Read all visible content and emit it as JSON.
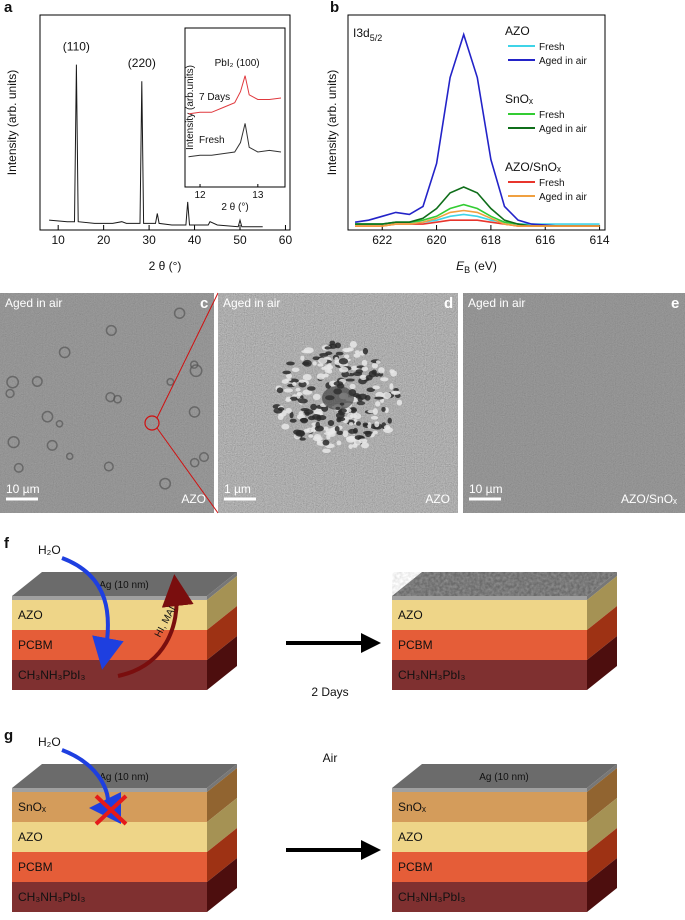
{
  "chart_data": [
    {
      "panel": "a",
      "type": "line",
      "xlabel": "2 θ (°)",
      "ylabel": "Intensity (arb. units)",
      "xlim": [
        6,
        61
      ],
      "xticks": [
        10,
        20,
        30,
        40,
        50,
        60
      ],
      "ylim": [
        0,
        1.3
      ],
      "x": [
        8,
        12,
        13.6,
        14,
        14.4,
        18,
        22,
        24,
        25,
        26,
        28,
        28.4,
        28.8,
        31.4,
        31.8,
        32.2,
        35,
        38.1,
        38.5,
        38.9,
        43,
        43.4,
        45,
        49.6,
        50,
        50.4,
        55
      ],
      "series": [
        {
          "color": "#1a1a1a",
          "values": [
            0.06,
            0.05,
            0.05,
            1.0,
            0.05,
            0.04,
            0.04,
            0.05,
            0.04,
            0.04,
            0.04,
            0.9,
            0.04,
            0.04,
            0.1,
            0.04,
            0.03,
            0.03,
            0.17,
            0.03,
            0.03,
            0.05,
            0.03,
            0.02,
            0.06,
            0.02,
            0.02
          ]
        }
      ],
      "peak_labels": [
        "(110)",
        "(220)"
      ]
    },
    {
      "type": "line",
      "xlabel": "2 θ (°)",
      "ylabel": "Intensity (arb.units)",
      "annotation": "PbI₂ (100)",
      "xlim": [
        11.74,
        13.47
      ],
      "xticks": [
        12,
        13
      ],
      "ylim": [
        0,
        1
      ],
      "x": [
        11.8,
        12.0,
        12.2,
        12.4,
        12.6,
        12.7,
        12.78,
        12.85,
        13.0,
        13.2,
        13.4
      ],
      "series": [
        {
          "name": "7 Days",
          "color": "#e0393e",
          "values": [
            0.46,
            0.47,
            0.47,
            0.5,
            0.53,
            0.6,
            0.7,
            0.58,
            0.55,
            0.55,
            0.56
          ]
        },
        {
          "name": "Fresh",
          "color": "#333333",
          "values": [
            0.19,
            0.2,
            0.2,
            0.21,
            0.22,
            0.28,
            0.4,
            0.25,
            0.22,
            0.23,
            0.22
          ]
        }
      ]
    },
    {
      "panel": "b",
      "type": "line",
      "label": {
        "main": "I3d",
        "subscript": "5/2"
      },
      "xlabel": {
        "symbol": "E",
        "subscript": "B",
        "unit": "(eV)"
      },
      "ylabel": "Intensity (arb. units)",
      "xlim": [
        623.26,
        613.8
      ],
      "xticks": [
        622,
        620,
        618,
        616,
        614
      ],
      "ylim": [
        0,
        1.1
      ],
      "x": [
        623,
        622.5,
        622,
        621.5,
        621,
        620.5,
        620,
        619.5,
        619,
        618.5,
        618,
        617.5,
        617,
        616.5,
        616,
        615.5,
        615,
        614.5,
        614
      ],
      "legend_groups": [
        "AZO",
        "SnOₓ",
        "AZO/SnOₓ"
      ],
      "series": [
        {
          "name": "Fresh",
          "group": 0,
          "color": "#3fd4e8",
          "values": [
            0.03,
            0.03,
            0.03,
            0.04,
            0.04,
            0.04,
            0.05,
            0.07,
            0.08,
            0.07,
            0.05,
            0.04,
            0.03,
            0.03,
            0.03,
            0.03,
            0.03,
            0.03,
            0.03
          ]
        },
        {
          "name": "Aged in air",
          "group": 0,
          "color": "#2323c8",
          "values": [
            0.04,
            0.05,
            0.07,
            0.09,
            0.08,
            0.12,
            0.34,
            0.78,
            1.0,
            0.78,
            0.36,
            0.12,
            0.05,
            0.03,
            0.025,
            0.02,
            0.02,
            0.02,
            0.02
          ]
        },
        {
          "name": "Fresh",
          "group": 1,
          "color": "#33cc33",
          "values": [
            0.03,
            0.03,
            0.03,
            0.04,
            0.04,
            0.05,
            0.07,
            0.11,
            0.13,
            0.11,
            0.07,
            0.04,
            0.03,
            0.02,
            0.02,
            0.02,
            0.02,
            0.02,
            0.02
          ]
        },
        {
          "name": "Aged in air",
          "group": 1,
          "color": "#0f6e1a",
          "values": [
            0.03,
            0.03,
            0.03,
            0.04,
            0.04,
            0.06,
            0.11,
            0.19,
            0.22,
            0.19,
            0.11,
            0.05,
            0.03,
            0.02,
            0.02,
            0.02,
            0.02,
            0.02,
            0.02
          ]
        },
        {
          "name": "Fresh",
          "group": 2,
          "color": "#e8352c",
          "values": [
            0.02,
            0.02,
            0.02,
            0.03,
            0.03,
            0.03,
            0.04,
            0.05,
            0.05,
            0.05,
            0.04,
            0.03,
            0.02,
            0.02,
            0.02,
            0.02,
            0.02,
            0.02,
            0.02
          ]
        },
        {
          "name": "Aged in air",
          "group": 2,
          "color": "#f0a040",
          "values": [
            0.02,
            0.02,
            0.02,
            0.03,
            0.03,
            0.04,
            0.06,
            0.09,
            0.1,
            0.09,
            0.06,
            0.03,
            0.02,
            0.02,
            0.02,
            0.02,
            0.02,
            0.02,
            0.02
          ]
        }
      ]
    }
  ],
  "images": [
    {
      "panel": "c",
      "caption": "Aged in air",
      "scale_bar": "10 µm",
      "sample": "AZO"
    },
    {
      "panel": "d",
      "caption": "Aged in air",
      "scale_bar": "1 µm",
      "sample": "AZO"
    },
    {
      "panel": "e",
      "caption": "Aged in air",
      "scale_bar": "10 µm",
      "sample": "AZO/SnOₓ"
    }
  ],
  "diagrams": [
    {
      "panel": "f",
      "water": "H₂O",
      "top_layer": "Ag (10 nm)",
      "products": "HI, MAI",
      "transition": "2 Days",
      "layers": [
        {
          "name": "AZO",
          "color": "#ecd078"
        },
        {
          "name": "PCBM",
          "color": "#e2471d"
        },
        {
          "name": "CH₃NH₃PbI₃",
          "color": "#6e1414"
        }
      ],
      "after_layers": [
        {
          "name": "AZO",
          "color": "#ecd078"
        },
        {
          "name": "PCBM",
          "color": "#e2471d"
        },
        {
          "name": "CH₃NH₃PbI₃",
          "color": "#6e1414"
        }
      ]
    },
    {
      "panel": "g",
      "water": "H₂O",
      "top_layer": "Ag (10 nm)",
      "transition": "Air",
      "after_top_layer": "Ag (10 nm)",
      "layers": [
        {
          "name": "SnOₓ",
          "color": "#cf8f45"
        },
        {
          "name": "AZO",
          "color": "#ecd078"
        },
        {
          "name": "PCBM",
          "color": "#e2471d"
        },
        {
          "name": "CH₃NH₃PbI₃",
          "color": "#6e1414"
        }
      ],
      "after_layers": [
        {
          "name": "SnOₓ",
          "color": "#cf8f45"
        },
        {
          "name": "AZO",
          "color": "#ecd078"
        },
        {
          "name": "PCBM",
          "color": "#e2471d"
        },
        {
          "name": "CH₃NH₃PbI₃",
          "color": "#6e1414"
        }
      ]
    }
  ]
}
